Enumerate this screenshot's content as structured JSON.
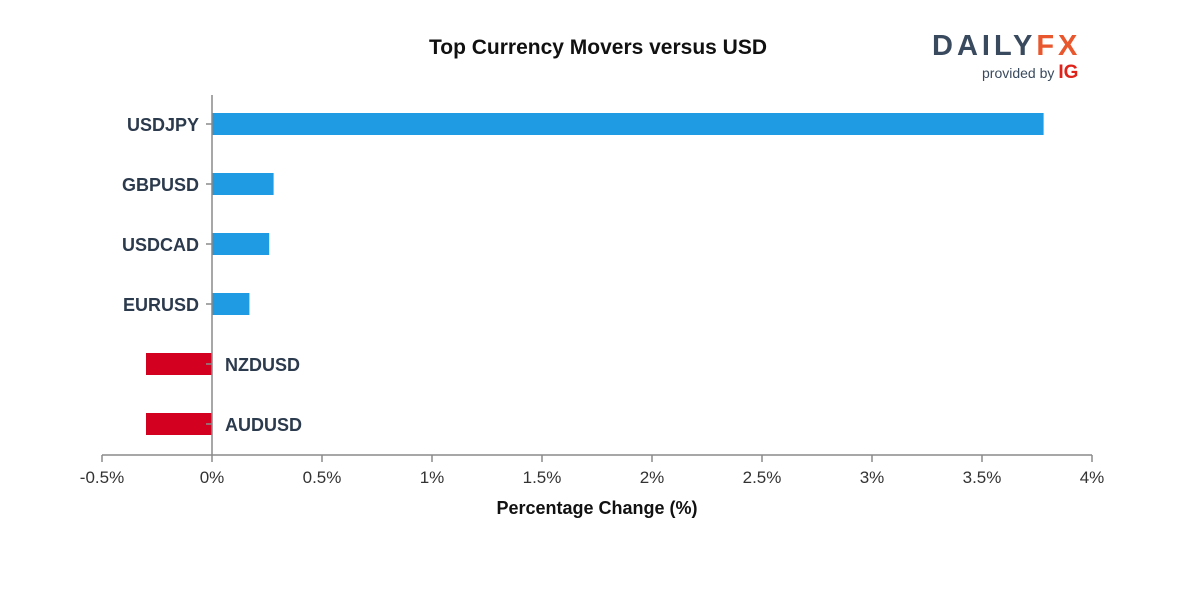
{
  "logo": {
    "brand_main": "DAILY",
    "brand_accent": "FX",
    "provided_by": "provided by",
    "partner": "IG"
  },
  "colors": {
    "positive": "#1f9be3",
    "negative": "#d3001f",
    "brand_accent": "#e8572d",
    "partner": "#e0231a"
  },
  "chart_data": {
    "type": "bar",
    "orientation": "horizontal",
    "title": "Top Currency Movers versus USD",
    "xlabel": "Percentage Change (%)",
    "ylabel": "",
    "categories": [
      "USDJPY",
      "GBPUSD",
      "USDCAD",
      "EURUSD",
      "NZDUSD",
      "AUDUSD"
    ],
    "values": [
      3.78,
      0.28,
      0.26,
      0.17,
      -0.3,
      -0.3
    ],
    "xlim": [
      -0.5,
      4
    ],
    "xticks": [
      -0.5,
      0,
      0.5,
      1,
      1.5,
      2,
      2.5,
      3,
      3.5,
      4
    ],
    "xtick_labels": [
      "-0.5%",
      "0%",
      "0.5%",
      "1%",
      "1.5%",
      "2%",
      "2.5%",
      "3%",
      "3.5%",
      "4%"
    ],
    "grid": false,
    "legend": "none"
  }
}
